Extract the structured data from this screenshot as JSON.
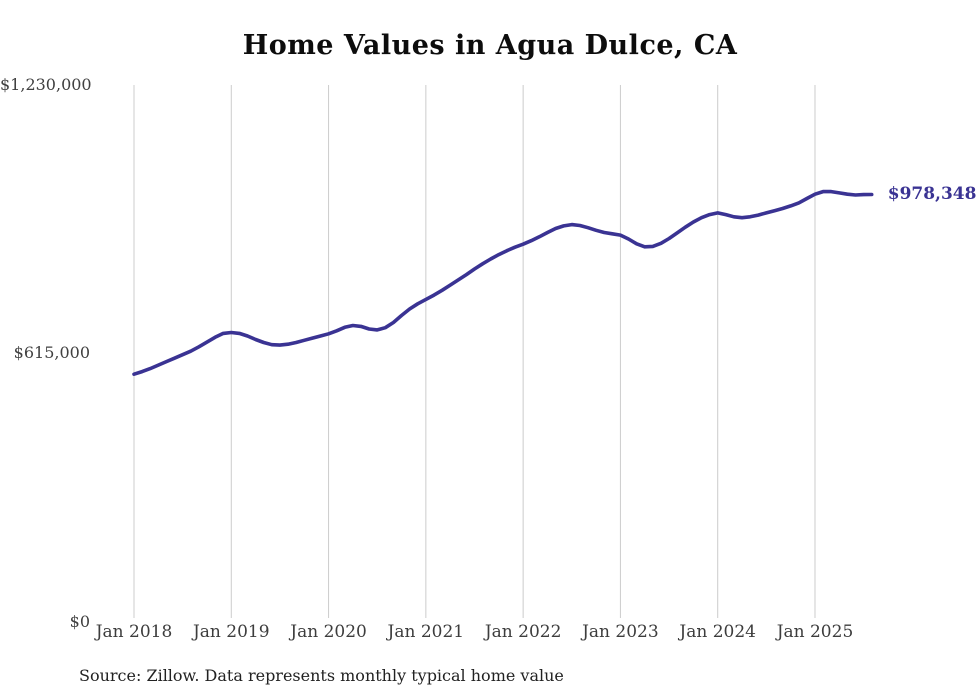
{
  "title": "Home Values in Agua Dulce, CA",
  "latest_value_label": "$978,348",
  "source_note": "Source: Zillow. Data represents monthly typical home value",
  "colors": {
    "line": "#3a3393",
    "latest_label": "#3a3393",
    "grid": "#cccccc",
    "axis_text": "#3d3d3d",
    "title_text": "#0d0d0d"
  },
  "y_axis": {
    "labels": [
      "$0",
      "$615,000",
      "$1,230,000"
    ]
  },
  "x_axis": {
    "labels": [
      "Jan 2018",
      "Jan 2019",
      "Jan 2020",
      "Jan 2021",
      "Jan 2022",
      "Jan 2023",
      "Jan 2024",
      "Jan 2025"
    ]
  },
  "chart_data": {
    "type": "line",
    "title": "Home Values in Agua Dulce, CA",
    "xlabel": "",
    "ylabel": "",
    "ylim": [
      0,
      1230000
    ],
    "y_tick_values": [
      0,
      615000,
      1230000
    ],
    "y_tick_labels": [
      "$0",
      "$615,000",
      "$1,230,000"
    ],
    "x_tick_labels": [
      "Jan 2018",
      "Jan 2019",
      "Jan 2020",
      "Jan 2021",
      "Jan 2022",
      "Jan 2023",
      "Jan 2024",
      "Jan 2025"
    ],
    "grid": "vertical-only",
    "legend": "none",
    "annotation": {
      "text": "$978,348",
      "position": "end-of-line"
    },
    "series": [
      {
        "name": "Monthly typical home value",
        "start_month": "Jan 2018",
        "interval": "monthly",
        "final_value": 978348,
        "values": [
          565000,
          571000,
          578000,
          586000,
          594000,
          602000,
          610000,
          618000,
          628000,
          639000,
          650000,
          659000,
          661000,
          659000,
          653000,
          645000,
          638000,
          633000,
          632000,
          634000,
          638000,
          643000,
          648000,
          653000,
          658000,
          665000,
          673000,
          677000,
          675000,
          669000,
          667000,
          672000,
          684000,
          700000,
          715000,
          727000,
          737000,
          747000,
          758000,
          770000,
          782000,
          794000,
          807000,
          819000,
          830000,
          840000,
          849000,
          857000,
          864000,
          872000,
          881000,
          891000,
          900000,
          906000,
          909000,
          907000,
          902000,
          896000,
          891000,
          888000,
          885000,
          876000,
          865000,
          858000,
          859000,
          866000,
          877000,
          890000,
          903000,
          915000,
          925000,
          932000,
          936000,
          932000,
          927000,
          925000,
          927000,
          931000,
          936000,
          941000,
          946000,
          952000,
          959000,
          969000,
          979000,
          985000,
          985000,
          982000,
          979000,
          977000,
          978000,
          978348
        ]
      }
    ]
  }
}
